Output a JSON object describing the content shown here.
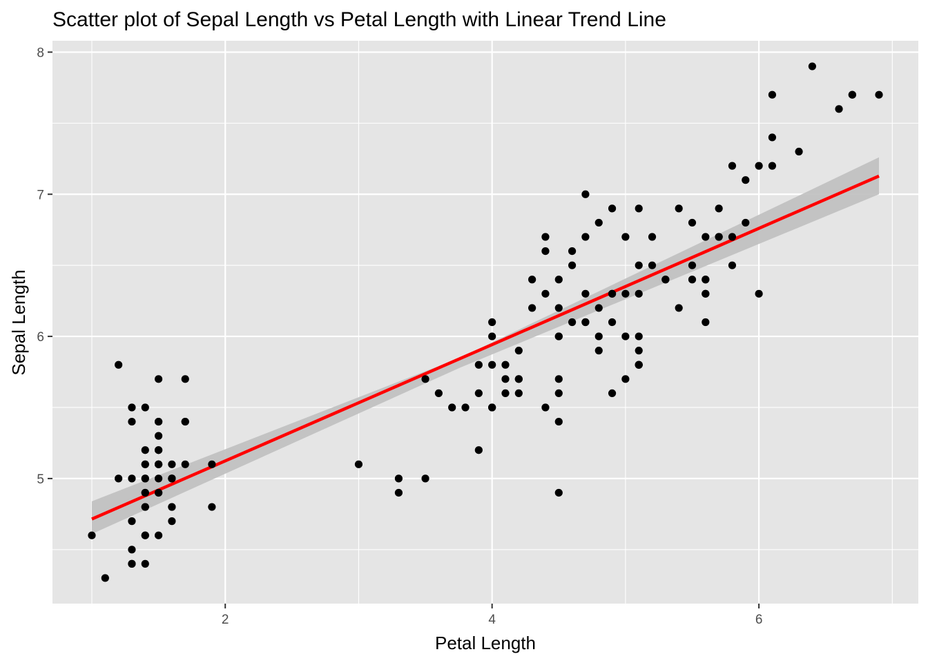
{
  "chart_data": {
    "type": "scatter",
    "title": "Scatter plot of Sepal Length vs Petal Length with Linear Trend Line",
    "xlabel": "Petal Length",
    "ylabel": "Sepal Length",
    "xlim": [
      0.705,
      7.195
    ],
    "ylim": [
      4.12,
      8.08
    ],
    "x_ticks": [
      2,
      4,
      6
    ],
    "y_ticks": [
      5,
      6,
      7,
      8
    ],
    "grid": true,
    "colors": {
      "panel_background": "#e5e5e5",
      "grid": "#ffffff",
      "points": "#000000",
      "trend_line": "#ff0000",
      "confidence_band": "#bfbfbf"
    },
    "trend_line": {
      "method": "linear",
      "intercept": 4.306,
      "slope": 0.409,
      "confidence_band": [
        {
          "x": 1.0,
          "lower": 4.61,
          "upper": 4.84
        },
        {
          "x": 3.76,
          "lower": 5.78,
          "upper": 5.85
        },
        {
          "x": 6.9,
          "lower": 7.0,
          "upper": 7.26
        }
      ]
    },
    "series": [
      {
        "points": [
          [
            1.4,
            5.1
          ],
          [
            1.4,
            4.9
          ],
          [
            1.3,
            4.7
          ],
          [
            1.5,
            4.6
          ],
          [
            1.4,
            5.0
          ],
          [
            1.7,
            5.4
          ],
          [
            1.4,
            4.6
          ],
          [
            1.5,
            5.0
          ],
          [
            1.4,
            4.4
          ],
          [
            1.5,
            4.9
          ],
          [
            1.5,
            5.4
          ],
          [
            1.6,
            4.8
          ],
          [
            1.4,
            4.8
          ],
          [
            1.1,
            4.3
          ],
          [
            1.2,
            5.8
          ],
          [
            1.5,
            5.7
          ],
          [
            1.3,
            5.4
          ],
          [
            1.4,
            5.1
          ],
          [
            1.7,
            5.7
          ],
          [
            1.5,
            5.1
          ],
          [
            1.7,
            5.4
          ],
          [
            1.5,
            5.1
          ],
          [
            1.0,
            4.6
          ],
          [
            1.7,
            5.1
          ],
          [
            1.9,
            4.8
          ],
          [
            1.6,
            5.0
          ],
          [
            1.6,
            5.0
          ],
          [
            1.5,
            5.2
          ],
          [
            1.4,
            5.2
          ],
          [
            1.6,
            4.7
          ],
          [
            1.6,
            4.8
          ],
          [
            1.5,
            5.4
          ],
          [
            1.5,
            5.2
          ],
          [
            1.4,
            5.5
          ],
          [
            1.5,
            4.9
          ],
          [
            1.2,
            5.0
          ],
          [
            1.3,
            5.5
          ],
          [
            1.4,
            4.9
          ],
          [
            1.3,
            4.4
          ],
          [
            1.5,
            5.1
          ],
          [
            1.3,
            5.0
          ],
          [
            1.3,
            4.5
          ],
          [
            1.3,
            4.4
          ],
          [
            1.6,
            5.0
          ],
          [
            1.9,
            5.1
          ],
          [
            1.4,
            4.8
          ],
          [
            1.6,
            5.1
          ],
          [
            1.4,
            4.6
          ],
          [
            1.5,
            5.3
          ],
          [
            1.4,
            5.0
          ],
          [
            4.7,
            7.0
          ],
          [
            4.5,
            6.4
          ],
          [
            4.9,
            6.9
          ],
          [
            4.0,
            5.5
          ],
          [
            4.6,
            6.5
          ],
          [
            4.5,
            5.7
          ],
          [
            4.7,
            6.3
          ],
          [
            3.3,
            4.9
          ],
          [
            4.6,
            6.6
          ],
          [
            3.9,
            5.2
          ],
          [
            3.5,
            5.0
          ],
          [
            4.2,
            5.9
          ],
          [
            4.0,
            6.0
          ],
          [
            4.7,
            6.1
          ],
          [
            3.6,
            5.6
          ],
          [
            4.4,
            6.7
          ],
          [
            4.5,
            5.6
          ],
          [
            4.1,
            5.8
          ],
          [
            4.5,
            6.2
          ],
          [
            3.9,
            5.6
          ],
          [
            4.8,
            5.9
          ],
          [
            4.0,
            6.1
          ],
          [
            4.9,
            6.3
          ],
          [
            4.7,
            6.1
          ],
          [
            4.3,
            6.4
          ],
          [
            4.4,
            6.6
          ],
          [
            4.8,
            6.8
          ],
          [
            5.0,
            6.7
          ],
          [
            4.5,
            6.0
          ],
          [
            3.5,
            5.7
          ],
          [
            3.8,
            5.5
          ],
          [
            3.7,
            5.5
          ],
          [
            3.9,
            5.8
          ],
          [
            5.1,
            6.0
          ],
          [
            4.5,
            5.4
          ],
          [
            4.5,
            6.0
          ],
          [
            4.7,
            6.7
          ],
          [
            4.4,
            6.3
          ],
          [
            4.1,
            5.6
          ],
          [
            4.0,
            5.5
          ],
          [
            4.4,
            5.5
          ],
          [
            4.6,
            6.1
          ],
          [
            4.0,
            5.8
          ],
          [
            3.3,
            5.0
          ],
          [
            4.2,
            5.6
          ],
          [
            4.2,
            5.7
          ],
          [
            4.2,
            5.7
          ],
          [
            4.3,
            6.2
          ],
          [
            3.0,
            5.1
          ],
          [
            4.1,
            5.7
          ],
          [
            6.0,
            6.3
          ],
          [
            5.1,
            5.8
          ],
          [
            5.9,
            7.1
          ],
          [
            5.6,
            6.3
          ],
          [
            5.8,
            6.5
          ],
          [
            6.6,
            7.6
          ],
          [
            4.5,
            4.9
          ],
          [
            6.3,
            7.3
          ],
          [
            5.8,
            6.7
          ],
          [
            6.1,
            7.2
          ],
          [
            5.1,
            6.5
          ],
          [
            5.3,
            6.4
          ],
          [
            5.5,
            6.8
          ],
          [
            5.0,
            5.7
          ],
          [
            5.1,
            5.8
          ],
          [
            5.3,
            6.4
          ],
          [
            5.5,
            6.5
          ],
          [
            6.7,
            7.7
          ],
          [
            6.9,
            7.7
          ],
          [
            5.0,
            6.0
          ],
          [
            5.7,
            6.9
          ],
          [
            4.9,
            5.6
          ],
          [
            6.7,
            7.7
          ],
          [
            4.9,
            6.3
          ],
          [
            5.7,
            6.7
          ],
          [
            6.0,
            7.2
          ],
          [
            4.8,
            6.2
          ],
          [
            4.9,
            6.1
          ],
          [
            5.6,
            6.4
          ],
          [
            5.8,
            7.2
          ],
          [
            6.1,
            7.4
          ],
          [
            6.4,
            7.9
          ],
          [
            5.6,
            6.4
          ],
          [
            5.1,
            6.3
          ],
          [
            5.6,
            6.1
          ],
          [
            6.1,
            7.7
          ],
          [
            5.6,
            6.3
          ],
          [
            5.5,
            6.4
          ],
          [
            4.8,
            6.0
          ],
          [
            5.4,
            6.9
          ],
          [
            5.6,
            6.7
          ],
          [
            5.1,
            6.9
          ],
          [
            5.1,
            5.8
          ],
          [
            5.9,
            6.8
          ],
          [
            5.7,
            6.7
          ],
          [
            5.2,
            6.7
          ],
          [
            5.0,
            6.3
          ],
          [
            5.2,
            6.5
          ],
          [
            5.4,
            6.2
          ],
          [
            5.1,
            5.9
          ]
        ]
      }
    ]
  }
}
